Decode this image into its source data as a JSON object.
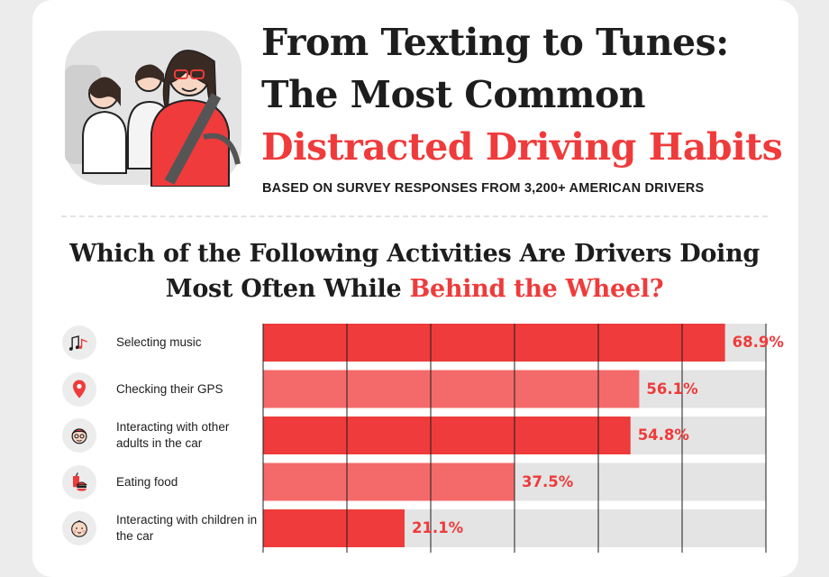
{
  "header": {
    "title_line1": "From Texting to Tunes:",
    "title_line2": "The Most Common",
    "title_line3": "Distracted Driving Habits",
    "subtitle": "BASED ON SURVEY RESPONSES FROM 3,200+ AMERICAN DRIVERS"
  },
  "question": {
    "part1": "Which of the Following Activities Are Drivers Doing Most Often While ",
    "highlight": "Behind the Wheel?"
  },
  "colors": {
    "accent": "#ef3b3b",
    "bar_alt": "#f46a6a",
    "track": "#e4e4e4",
    "text": "#1d1d1d"
  },
  "chart_data": {
    "type": "bar",
    "orientation": "horizontal",
    "categories": [
      "Selecting music",
      "Checking their GPS",
      "Interacting with other adults in the car",
      "Eating food",
      "Interacting with children in the car"
    ],
    "values": [
      68.9,
      56.1,
      54.8,
      37.5,
      21.1
    ],
    "value_labels": [
      "68.9%",
      "56.1%",
      "54.8%",
      "37.5%",
      "21.1%"
    ],
    "icons": [
      "music-notes-icon",
      "map-pin-icon",
      "adult-face-icon",
      "food-drink-icon",
      "baby-face-icon"
    ],
    "xlim": [
      0,
      75
    ],
    "grid": true
  }
}
